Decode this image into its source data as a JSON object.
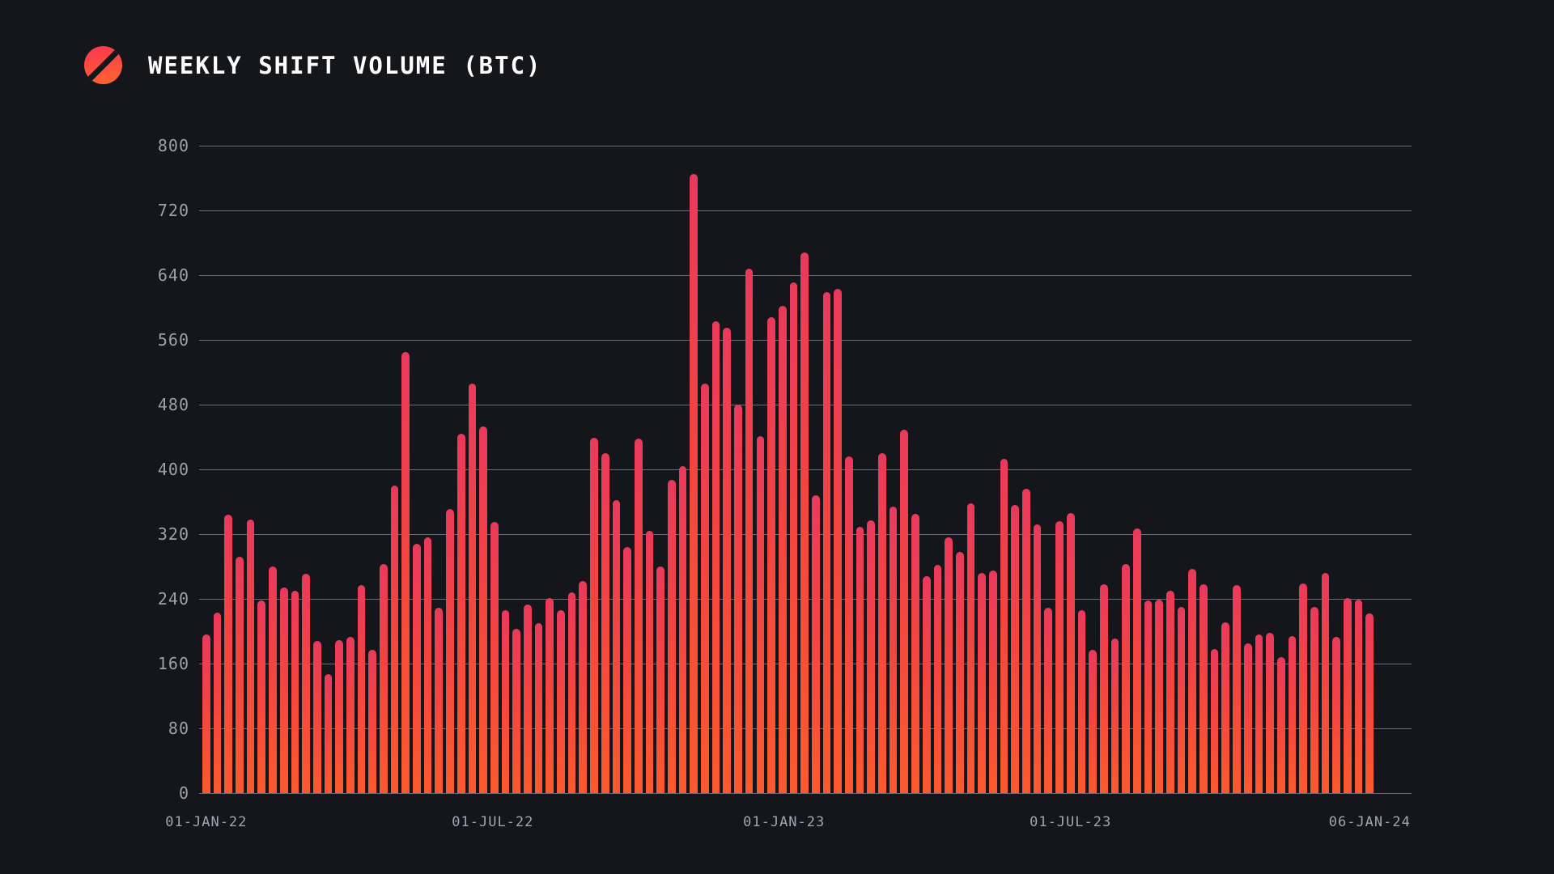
{
  "header": {
    "title": "WEEKLY SHIFT VOLUME (BTC)",
    "logo": "sideshift-slash-logo"
  },
  "chart_data": {
    "type": "bar",
    "title": "WEEKLY SHIFT VOLUME (BTC)",
    "unit": "BTC",
    "interval": "weekly",
    "x_start_label": "01-JAN-22",
    "x_end_label": "06-JAN-24",
    "ylim": [
      0,
      800
    ],
    "yticks": [
      0,
      80,
      160,
      240,
      320,
      400,
      480,
      560,
      640,
      720,
      800
    ],
    "xticks": [
      {
        "label": "01-JAN-22",
        "week": 0
      },
      {
        "label": "01-JUL-22",
        "week": 25.857
      },
      {
        "label": "01-JAN-23",
        "week": 52.143
      },
      {
        "label": "01-JUL-23",
        "week": 78
      },
      {
        "label": "06-JAN-24",
        "week": 105
      }
    ],
    "grid": true,
    "legend": false,
    "colors": {
      "background": "#15161b",
      "bar_top": "#ea3a5c",
      "bar_mid": "#f34441",
      "bar_bottom": "#fb5a2c",
      "gridline": "rgba(176,182,194,0.55)",
      "tick_text": "#9ba1ac",
      "title_text": "#ffffff",
      "logo_gradient_top": "#fc3a4e",
      "logo_gradient_bottom": "#ff6133"
    },
    "values": [
      196,
      223,
      344,
      292,
      338,
      238,
      280,
      254,
      250,
      271,
      188,
      147,
      189,
      193,
      257,
      177,
      283,
      380,
      545,
      308,
      316,
      229,
      351,
      444,
      506,
      453,
      335,
      226,
      203,
      233,
      210,
      241,
      226,
      248,
      262,
      439,
      420,
      362,
      304,
      438,
      324,
      280,
      387,
      404,
      765,
      506,
      583,
      575,
      480,
      648,
      441,
      588,
      602,
      631,
      668,
      368,
      619,
      623,
      416,
      329,
      337,
      420,
      354,
      449,
      345,
      268,
      282,
      316,
      298,
      358,
      272,
      275,
      413,
      356,
      376,
      332,
      229,
      336,
      346,
      226,
      177,
      258,
      191,
      283,
      327,
      238,
      239,
      250,
      230,
      277,
      258,
      178,
      211,
      257,
      185,
      196,
      198,
      168,
      194,
      259,
      230,
      272,
      193,
      241,
      239,
      222
    ]
  }
}
